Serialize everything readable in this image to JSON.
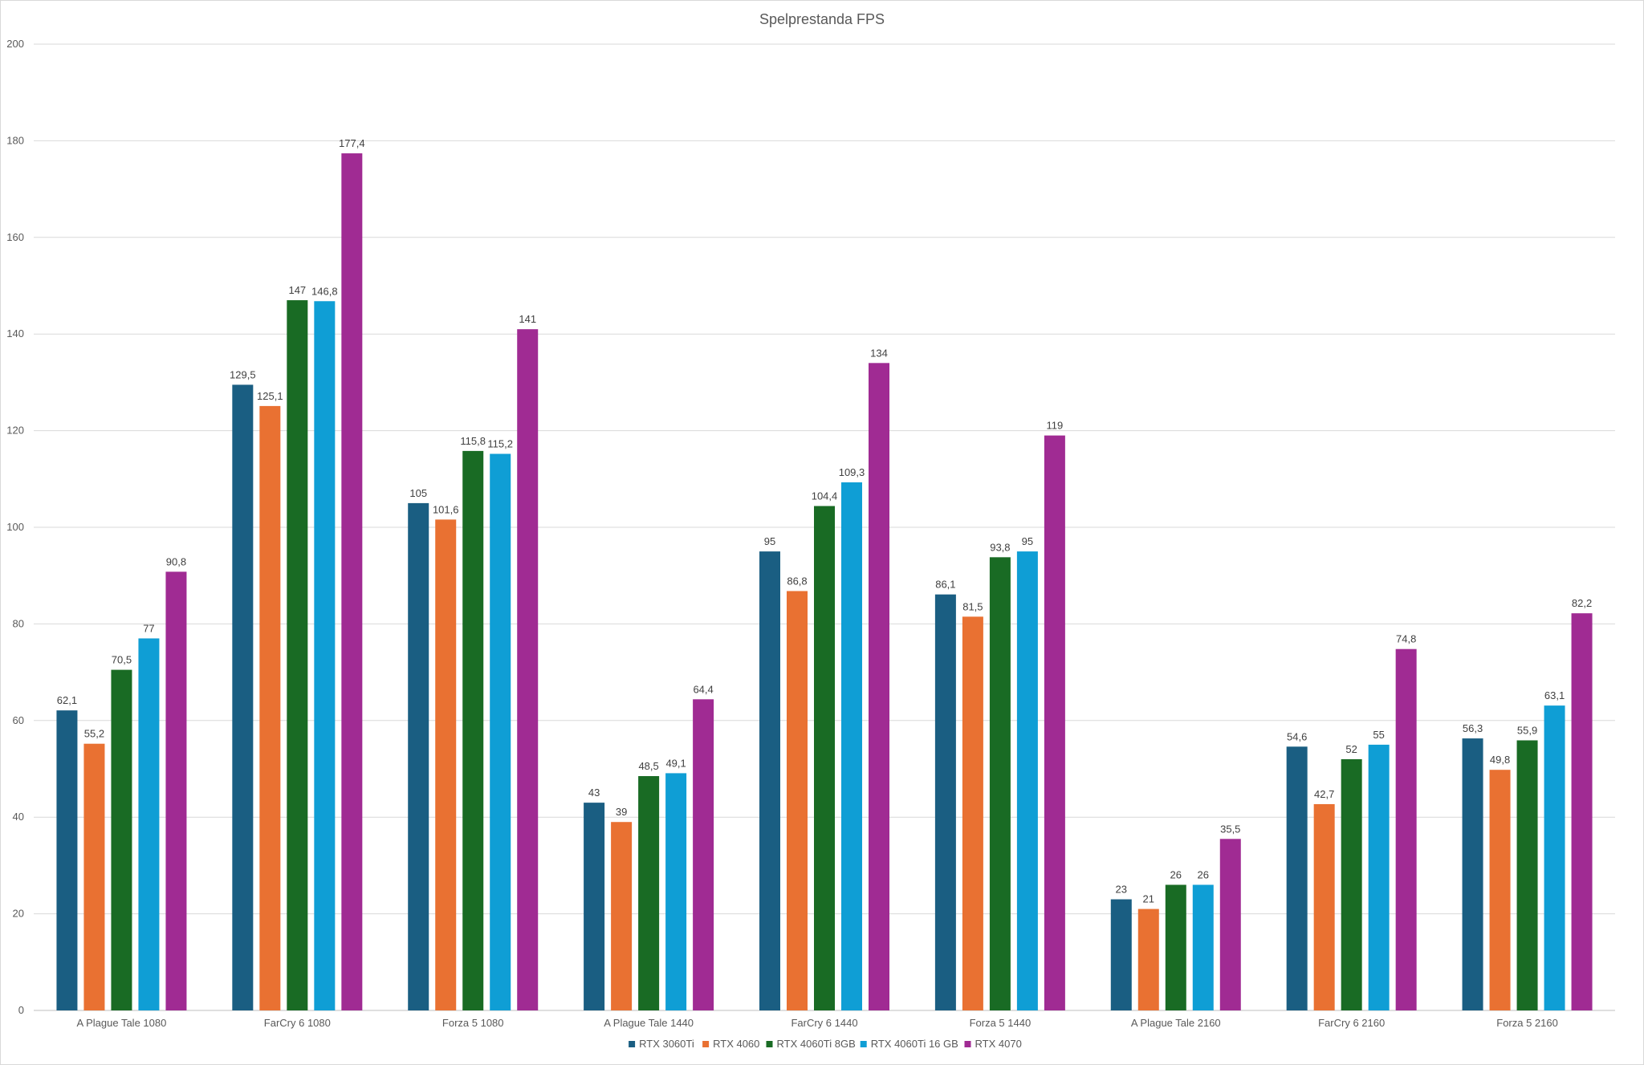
{
  "chart_data": {
    "type": "bar",
    "title": "Spelprestanda FPS",
    "xlabel": "",
    "ylabel": "",
    "ylim": [
      0,
      200
    ],
    "ytick_step": 20,
    "grid": true,
    "legend_position": "bottom",
    "categories": [
      "A Plague Tale 1080",
      "FarCry 6 1080",
      "Forza 5 1080",
      "A Plague Tale 1440",
      "FarCry 6 1440",
      "Forza 5 1440",
      "A Plague Tale 2160",
      "FarCry 6 2160",
      "Forza 5 2160"
    ],
    "series": [
      {
        "name": "RTX 3060Ti",
        "color": "#1a5e82",
        "values": [
          62.1,
          129.5,
          105,
          43,
          95,
          86.1,
          23,
          54.6,
          56.3
        ],
        "labels": [
          "62,1",
          "129,5",
          "105",
          "43",
          "95",
          "86,1",
          "23",
          "54,6",
          "56,3"
        ]
      },
      {
        "name": "RTX 4060",
        "color": "#e97132",
        "values": [
          55.2,
          125.1,
          101.6,
          39,
          86.8,
          81.5,
          21,
          42.7,
          49.8
        ],
        "labels": [
          "55,2",
          "125,1",
          "101,6",
          "39",
          "86,8",
          "81,5",
          "21",
          "42,7",
          "49,8"
        ]
      },
      {
        "name": "RTX 4060Ti 8GB",
        "color": "#196b24",
        "values": [
          70.5,
          147,
          115.8,
          48.5,
          104.4,
          93.8,
          26,
          52,
          55.9
        ],
        "labels": [
          "70,5",
          "147",
          "115,8",
          "48,5",
          "104,4",
          "93,8",
          "26",
          "52",
          "55,9"
        ]
      },
      {
        "name": "RTX 4060Ti 16 GB",
        "color": "#0f9ed5",
        "values": [
          77,
          146.8,
          115.2,
          49.1,
          109.3,
          95,
          26,
          55,
          63.1
        ],
        "labels": [
          "77",
          "146,8",
          "115,2",
          "49,1",
          "109,3",
          "95",
          "26",
          "55",
          "63,1"
        ]
      },
      {
        "name": "RTX 4070",
        "color": "#a02b93",
        "values": [
          90.8,
          177.4,
          141,
          64.4,
          134,
          119,
          35.5,
          74.8,
          82.2
        ],
        "labels": [
          "90,8",
          "177,4",
          "141",
          "64,4",
          "134",
          "119",
          "35,5",
          "74,8",
          "82,2"
        ]
      }
    ]
  }
}
